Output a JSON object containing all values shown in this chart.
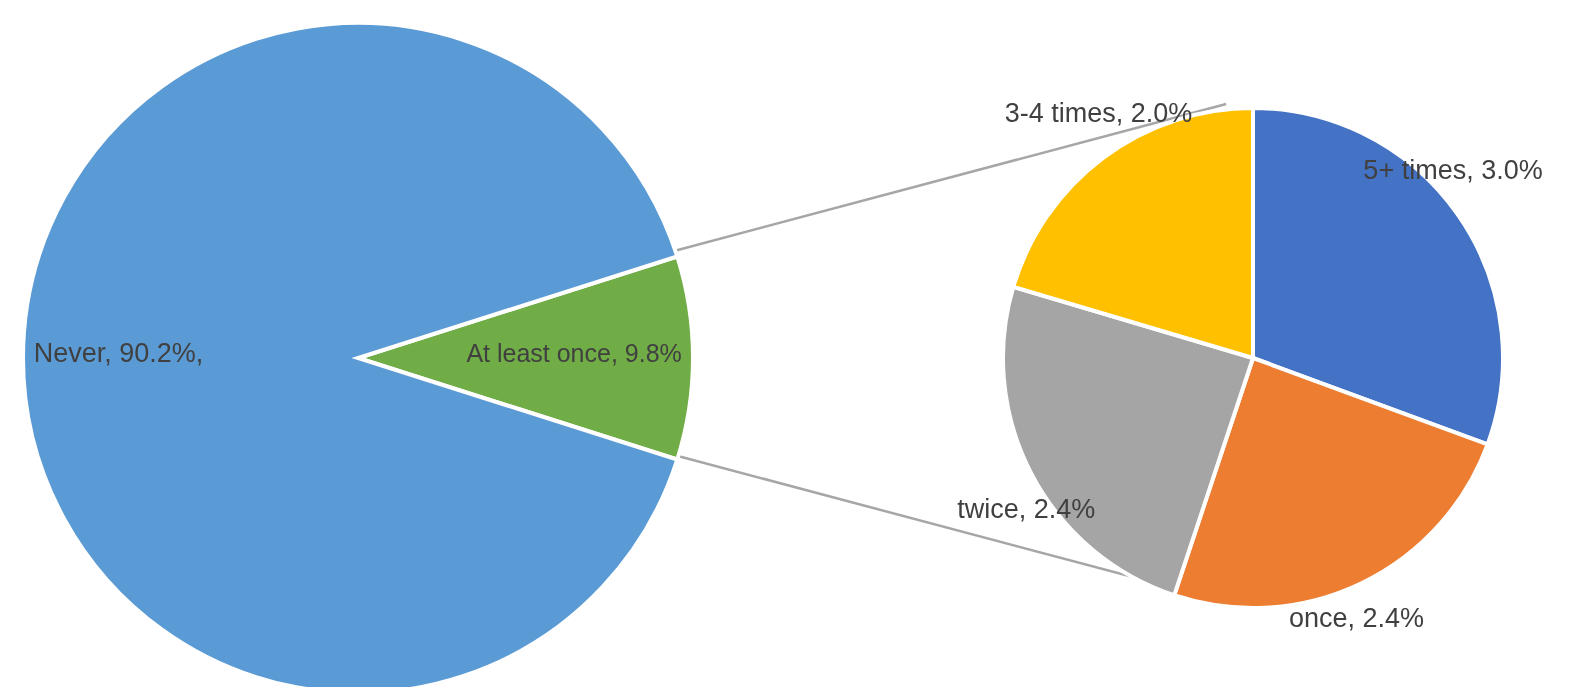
{
  "chart_data": [
    {
      "type": "pie",
      "categories": [
        "At least once",
        "Never"
      ],
      "values": [
        9.8,
        90.2
      ],
      "colors": [
        "#70ad47",
        "#5b9bd5"
      ],
      "value_labels": [
        "9.8%",
        "90.2%,"
      ]
    },
    {
      "type": "pie",
      "categories": [
        "5+ times",
        "once",
        "twice",
        "3-4 times"
      ],
      "values": [
        3.0,
        2.4,
        2.4,
        2.0
      ],
      "colors": [
        "#4472c4",
        "#ed7d31",
        "#a5a5a5",
        "#ffc000"
      ],
      "value_labels": [
        "3.0%",
        "2.4%",
        "2.4%",
        "2.0%"
      ]
    }
  ]
}
